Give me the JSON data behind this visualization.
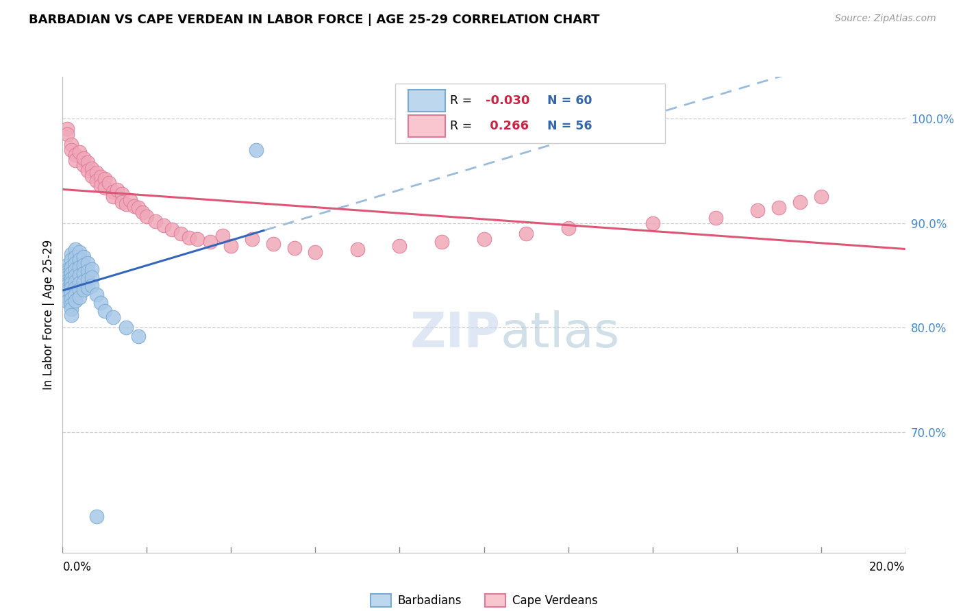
{
  "title": "BARBADIAN VS CAPE VERDEAN IN LABOR FORCE | AGE 25-29 CORRELATION CHART",
  "source": "Source: ZipAtlas.com",
  "ylabel": "In Labor Force | Age 25-29",
  "legend_blue_R": "-0.030",
  "legend_blue_N": "60",
  "legend_pink_R": " 0.266",
  "legend_pink_N": "56",
  "blue_scatter_color": "#A8C8E8",
  "pink_scatter_color": "#F0A8B8",
  "blue_edge_color": "#7AAAD0",
  "pink_edge_color": "#E07898",
  "trend_blue_solid_color": "#3366BB",
  "trend_blue_dashed_color": "#99BBDD",
  "trend_pink_color": "#DD5577",
  "legend_blue_patch_face": "#BDD7EE",
  "legend_blue_patch_edge": "#7AAAD0",
  "legend_pink_patch_face": "#F9C6CF",
  "legend_pink_patch_edge": "#E07898",
  "watermark_ZIP_color": "#C8D8EC",
  "watermark_atlas_color": "#99BBCC",
  "yright_tick_color": "#4488CC",
  "xlim": [
    0.0,
    0.2
  ],
  "ylim": [
    0.585,
    1.04
  ],
  "ytick_values": [
    0.7,
    0.8,
    0.9,
    1.0
  ],
  "ytick_labels": [
    "70.0%",
    "80.0%",
    "90.0%",
    "100.0%"
  ],
  "grid_color": "#CCCCCC",
  "trend_break_x": 0.048,
  "blue_x": [
    0.001,
    0.001,
    0.001,
    0.001,
    0.001,
    0.001,
    0.001,
    0.001,
    0.001,
    0.001,
    0.001,
    0.001,
    0.002,
    0.002,
    0.002,
    0.002,
    0.002,
    0.002,
    0.002,
    0.002,
    0.002,
    0.002,
    0.002,
    0.002,
    0.003,
    0.003,
    0.003,
    0.003,
    0.003,
    0.003,
    0.003,
    0.003,
    0.003,
    0.004,
    0.004,
    0.004,
    0.004,
    0.004,
    0.004,
    0.004,
    0.005,
    0.005,
    0.005,
    0.005,
    0.005,
    0.006,
    0.006,
    0.006,
    0.006,
    0.007,
    0.007,
    0.007,
    0.008,
    0.009,
    0.01,
    0.012,
    0.015,
    0.018,
    0.046,
    0.008
  ],
  "blue_y": [
    0.86,
    0.855,
    0.853,
    0.851,
    0.848,
    0.845,
    0.842,
    0.84,
    0.837,
    0.835,
    0.83,
    0.825,
    0.87,
    0.865,
    0.858,
    0.852,
    0.847,
    0.843,
    0.838,
    0.833,
    0.828,
    0.822,
    0.818,
    0.812,
    0.875,
    0.868,
    0.862,
    0.856,
    0.85,
    0.844,
    0.838,
    0.832,
    0.826,
    0.872,
    0.865,
    0.858,
    0.85,
    0.843,
    0.836,
    0.829,
    0.868,
    0.86,
    0.852,
    0.844,
    0.836,
    0.862,
    0.854,
    0.846,
    0.838,
    0.856,
    0.848,
    0.84,
    0.832,
    0.824,
    0.816,
    0.81,
    0.8,
    0.792,
    0.97,
    0.62
  ],
  "pink_x": [
    0.001,
    0.001,
    0.002,
    0.002,
    0.003,
    0.003,
    0.004,
    0.005,
    0.005,
    0.006,
    0.006,
    0.007,
    0.007,
    0.008,
    0.008,
    0.009,
    0.009,
    0.01,
    0.01,
    0.011,
    0.012,
    0.012,
    0.013,
    0.014,
    0.014,
    0.015,
    0.016,
    0.017,
    0.018,
    0.019,
    0.02,
    0.022,
    0.024,
    0.026,
    0.028,
    0.03,
    0.032,
    0.035,
    0.038,
    0.04,
    0.045,
    0.05,
    0.055,
    0.06,
    0.07,
    0.08,
    0.09,
    0.1,
    0.11,
    0.12,
    0.14,
    0.155,
    0.165,
    0.17,
    0.175,
    0.18
  ],
  "pink_y": [
    0.99,
    0.985,
    0.975,
    0.97,
    0.965,
    0.96,
    0.968,
    0.955,
    0.962,
    0.958,
    0.95,
    0.952,
    0.945,
    0.948,
    0.94,
    0.944,
    0.936,
    0.942,
    0.934,
    0.938,
    0.93,
    0.925,
    0.932,
    0.928,
    0.92,
    0.918,
    0.922,
    0.916,
    0.915,
    0.91,
    0.906,
    0.902,
    0.898,
    0.894,
    0.89,
    0.886,
    0.885,
    0.882,
    0.888,
    0.878,
    0.885,
    0.88,
    0.876,
    0.872,
    0.875,
    0.878,
    0.882,
    0.885,
    0.89,
    0.895,
    0.9,
    0.905,
    0.912,
    0.915,
    0.92,
    0.925
  ]
}
